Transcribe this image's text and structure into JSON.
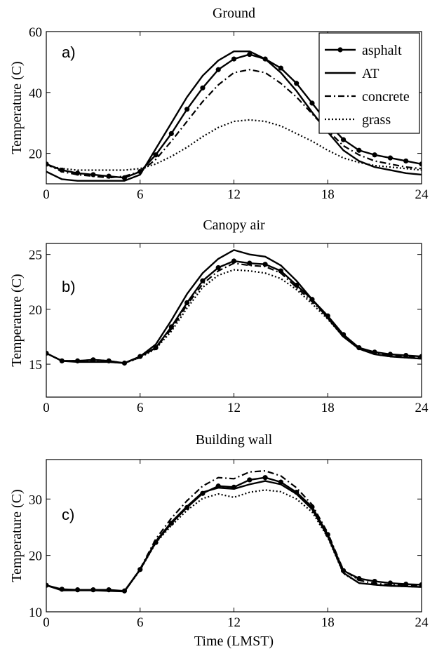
{
  "chart_data": [
    {
      "type": "line",
      "title": "Ground",
      "panel_label": "a)",
      "ylabel": "Temperature (C)",
      "xlabel": "",
      "xlim": [
        0,
        24
      ],
      "ylim": [
        10,
        60
      ],
      "xticks": [
        0,
        6,
        12,
        18,
        24
      ],
      "yticks": [
        20,
        40,
        60
      ],
      "legend": "top-right",
      "series": [
        {
          "name": "asphalt",
          "style": "dot-marker",
          "values": [
            16.5,
            14.5,
            13.5,
            13,
            12.5,
            12,
            14,
            19.5,
            26.5,
            34.5,
            41.5,
            47.5,
            51,
            52.5,
            51,
            48,
            43,
            36.5,
            30,
            24.5,
            21,
            19.5,
            18.5,
            17.5,
            16.5
          ]
        },
        {
          "name": "AT",
          "style": "solid",
          "values": [
            14,
            11.5,
            11,
            11,
            11,
            11,
            13,
            21.5,
            30,
            38.5,
            45.5,
            50.5,
            53.5,
            53.5,
            51,
            46.5,
            40.5,
            33.5,
            27,
            21,
            17.5,
            15.5,
            14.5,
            13.5,
            13
          ]
        },
        {
          "name": "concrete",
          "style": "dashdot",
          "values": [
            16.5,
            14,
            13,
            12.5,
            12,
            12.5,
            14,
            18,
            24,
            30.5,
            37,
            42.5,
            46.5,
            47.5,
            46.5,
            43,
            38.5,
            33,
            27.5,
            22.5,
            19.5,
            17.5,
            16.5,
            15.5,
            15
          ]
        },
        {
          "name": "grass",
          "style": "dotted",
          "values": [
            16,
            15,
            14.5,
            14.5,
            14.5,
            14.5,
            15,
            16.5,
            19,
            22,
            25.5,
            28.5,
            30.5,
            31,
            30.5,
            29,
            26.5,
            24,
            21,
            18.5,
            17,
            16,
            15.5,
            15,
            14.5
          ]
        }
      ]
    },
    {
      "type": "line",
      "title": "Canopy air",
      "panel_label": "b)",
      "ylabel": "Temperature (C)",
      "xlabel": "",
      "xlim": [
        0,
        24
      ],
      "ylim": [
        12,
        26
      ],
      "xticks": [
        0,
        6,
        12,
        18,
        24
      ],
      "yticks": [
        15,
        20,
        25
      ],
      "series": [
        {
          "name": "asphalt",
          "style": "dot-marker",
          "values": [
            16,
            15.3,
            15.3,
            15.4,
            15.3,
            15.1,
            15.7,
            16.5,
            18.4,
            20.6,
            22.6,
            23.8,
            24.4,
            24.2,
            24.1,
            23.5,
            22.2,
            20.9,
            19.4,
            17.7,
            16.5,
            16.1,
            15.9,
            15.8,
            15.7
          ]
        },
        {
          "name": "AT",
          "style": "solid",
          "values": [
            16,
            15.3,
            15.2,
            15.2,
            15.2,
            15.1,
            15.7,
            16.8,
            19,
            21.4,
            23.3,
            24.6,
            25.4,
            25,
            24.8,
            24,
            22.6,
            20.9,
            19.2,
            17.5,
            16.4,
            15.9,
            15.7,
            15.6,
            15.5
          ]
        },
        {
          "name": "concrete",
          "style": "dashdot",
          "values": [
            16,
            15.3,
            15.3,
            15.4,
            15.3,
            15.1,
            15.6,
            16.5,
            18.2,
            20.4,
            22.3,
            23.5,
            24.2,
            24,
            23.9,
            23.3,
            22,
            20.7,
            19.3,
            17.6,
            16.5,
            16,
            15.8,
            15.7,
            15.6
          ]
        },
        {
          "name": "grass",
          "style": "dotted",
          "values": [
            16,
            15.3,
            15.3,
            15.3,
            15.2,
            15.1,
            15.6,
            16.4,
            18,
            20.1,
            22,
            23.1,
            23.6,
            23.5,
            23.3,
            22.8,
            21.8,
            20.5,
            19.1,
            17.5,
            16.4,
            15.9,
            15.7,
            15.6,
            15.5
          ]
        }
      ]
    },
    {
      "type": "line",
      "title": "Building wall",
      "panel_label": "c)",
      "ylabel": "Temperature (C)",
      "xlabel": "Time (LMST)",
      "xlim": [
        0,
        24
      ],
      "ylim": [
        10,
        37
      ],
      "xticks": [
        0,
        6,
        12,
        18,
        24
      ],
      "yticks": [
        10,
        20,
        30
      ],
      "series": [
        {
          "name": "asphalt",
          "style": "dot-marker",
          "values": [
            14.7,
            14,
            13.9,
            13.9,
            13.9,
            13.7,
            17.5,
            22.3,
            25.7,
            28.5,
            31,
            32.3,
            32.1,
            33.4,
            33.8,
            33,
            31.2,
            28.6,
            23.7,
            17.3,
            15.9,
            15.4,
            15.1,
            14.9,
            14.8
          ]
        },
        {
          "name": "AT",
          "style": "solid",
          "values": [
            14.7,
            13.8,
            13.8,
            13.8,
            13.7,
            13.6,
            17.5,
            22.5,
            25.9,
            28.7,
            31.2,
            32,
            31.8,
            32.6,
            33.2,
            32.6,
            30.9,
            28.2,
            23.4,
            16.9,
            15.1,
            14.8,
            14.6,
            14.5,
            14.4
          ]
        },
        {
          "name": "concrete",
          "style": "dashdot",
          "values": [
            14.7,
            13.9,
            13.8,
            13.8,
            13.8,
            13.6,
            17.6,
            22.9,
            26.6,
            29.7,
            32.3,
            33.8,
            33.6,
            34.8,
            35,
            34.1,
            32,
            29,
            24,
            17.4,
            15.6,
            15,
            14.8,
            14.7,
            14.6
          ]
        },
        {
          "name": "grass",
          "style": "dotted",
          "values": [
            14.7,
            13.9,
            13.8,
            13.8,
            13.8,
            13.6,
            17.4,
            22.2,
            25.3,
            28,
            30.1,
            30.9,
            30.3,
            31.2,
            31.6,
            31.3,
            30,
            27.7,
            23.2,
            16.8,
            15.1,
            14.8,
            14.6,
            14.5,
            14.4
          ]
        }
      ]
    }
  ]
}
